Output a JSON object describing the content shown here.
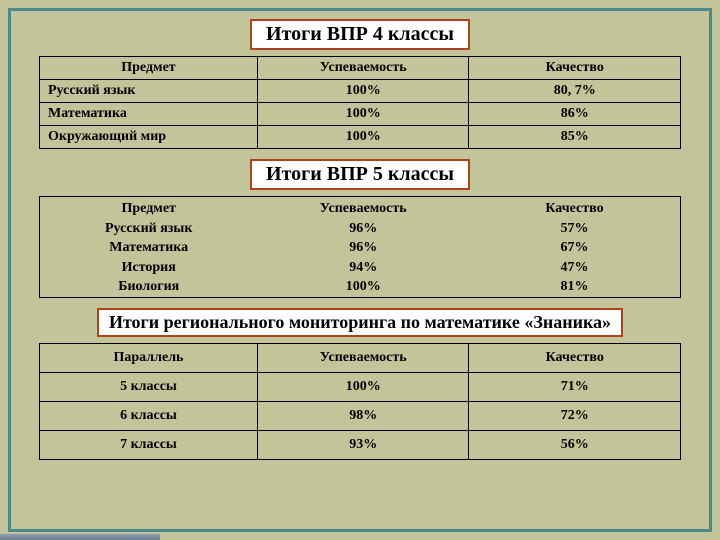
{
  "section1": {
    "title": "Итоги ВПР 4 классы",
    "columns": [
      "Предмет",
      "Успеваемость",
      "Качество"
    ],
    "rows": [
      {
        "subject": "Русский язык",
        "performance": "100%",
        "quality": "80, 7%"
      },
      {
        "subject": "Математика",
        "performance": "100%",
        "quality": "86%"
      },
      {
        "subject": "Окружающий мир",
        "performance": "100%",
        "quality": "85%"
      }
    ]
  },
  "section2": {
    "title": "Итоги ВПР 5 классы",
    "columns": [
      "Предмет",
      "Успеваемость",
      "Качество"
    ],
    "rows": [
      {
        "subject": "Русский язык",
        "performance": "96%",
        "quality": "57%"
      },
      {
        "subject": "Математика",
        "performance": "96%",
        "quality": "67%"
      },
      {
        "subject": "История",
        "performance": "94%",
        "quality": "47%"
      },
      {
        "subject": "Биология",
        "performance": "100%",
        "quality": "81%"
      }
    ]
  },
  "section3": {
    "title": "Итоги регионального мониторинга по математике «Знаника»",
    "columns": [
      "Параллель",
      "Успеваемость",
      "Качество"
    ],
    "rows": [
      {
        "subject": "5 классы",
        "performance": "100%",
        "quality": "71%"
      },
      {
        "subject": "6 классы",
        "performance": "98%",
        "quality": "72%"
      },
      {
        "subject": "7 классы",
        "performance": "93%",
        "quality": "56%"
      }
    ]
  },
  "style": {
    "page_bg": "#c4c49a",
    "frame_border": "#4a8a8a",
    "title_bg": "#ffffff",
    "title_border": "#b04020",
    "cell_border": "#000000",
    "title_fontsize_pt": 20,
    "body_fontsize_pt": 14,
    "font_family": "Times New Roman"
  }
}
